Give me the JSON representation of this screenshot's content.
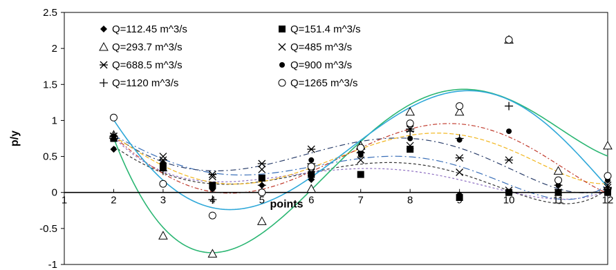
{
  "chart_data": {
    "type": "scatter",
    "title": "",
    "xlabel": "points",
    "ylabel": "p/y",
    "xlim": [
      1,
      12
    ],
    "ylim": [
      -1,
      2.5
    ],
    "x_ticks": [
      "1",
      "2",
      "3",
      "4",
      "5",
      "6",
      "7",
      "8",
      "9",
      "10",
      "11",
      "12"
    ],
    "y_ticks": [
      "-1",
      "-0.5",
      "0",
      "0.5",
      "1",
      "1.5",
      "2",
      "2.5"
    ],
    "grid": false,
    "legend": "top-left, two columns",
    "x": [
      2,
      3,
      4,
      5,
      6,
      7,
      8,
      9,
      10,
      11,
      12
    ],
    "series": [
      {
        "name": "Q=112.45 m^3/s",
        "marker": "diamond",
        "values": [
          0.6,
          0.4,
          0.05,
          0.1,
          0.18,
          0.55,
          0.6,
          -0.03,
          0.0,
          0.0,
          0.0
        ],
        "trend_color": "#333333"
      },
      {
        "name": "Q=151.4 m^3/s",
        "marker": "square",
        "values": [
          0.75,
          0.35,
          0.1,
          0.2,
          0.25,
          0.25,
          0.6,
          -0.07,
          0.0,
          0.0,
          0.0
        ],
        "trend_color": "#8e6fc2"
      },
      {
        "name": "Q=293.7 m^3/s",
        "marker": "triangle",
        "values": [
          0.8,
          -0.6,
          -0.85,
          -0.4,
          0.05,
          0.65,
          1.12,
          1.12,
          2.12,
          0.3,
          0.65
        ],
        "trend_color": "#2bb673"
      },
      {
        "name": "Q=485 m^3/s",
        "marker": "x",
        "values": [
          0.78,
          0.5,
          0.22,
          0.32,
          0.28,
          0.45,
          0.65,
          0.28,
          0.03,
          0.0,
          0.1
        ],
        "trend_color": "#3a6fb8"
      },
      {
        "name": "Q=688.5 m^3/s",
        "marker": "star",
        "values": [
          0.78,
          0.45,
          0.25,
          0.4,
          0.6,
          0.6,
          0.88,
          0.48,
          0.45,
          0.0,
          0.07
        ],
        "trend_color": "#2b3f6b"
      },
      {
        "name": "Q=900 m^3/s",
        "marker": "circle-filled",
        "values": [
          0.78,
          0.4,
          0.05,
          0.2,
          0.45,
          0.52,
          0.75,
          0.73,
          0.85,
          0.1,
          0.17
        ],
        "trend_color": "#f2b61d"
      },
      {
        "name": "Q=1120 m^3/s",
        "marker": "plus",
        "values": [
          0.78,
          0.3,
          -0.1,
          0.1,
          0.4,
          0.55,
          0.85,
          0.75,
          1.2,
          0.1,
          0.05
        ],
        "trend_color": "#c0392b"
      },
      {
        "name": "Q=1265 m^3/s",
        "marker": "circle-open",
        "values": [
          1.04,
          0.12,
          -0.32,
          0.0,
          0.36,
          0.62,
          0.96,
          1.2,
          2.12,
          0.17,
          0.23
        ],
        "trend_color": "#2fa8d9"
      }
    ]
  }
}
